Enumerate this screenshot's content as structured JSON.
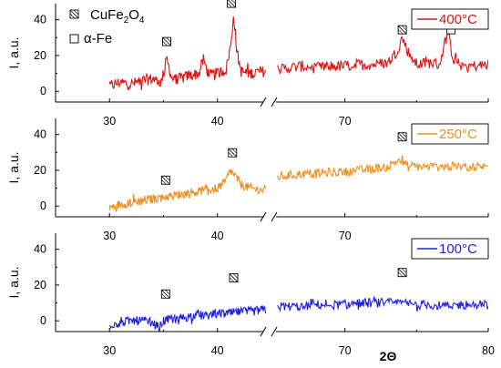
{
  "chart_data": {
    "type": "line",
    "xlabel": "2Θ",
    "x_segments": [
      [
        25,
        44.5
      ],
      [
        65,
        80
      ]
    ],
    "x_ticks_left": [
      30,
      40
    ],
    "x_ticks_right": [
      70,
      80
    ],
    "x_tick_labels_shown": {
      "panel_0": [
        "30",
        "40",
        "70"
      ],
      "panel_1": [
        "30",
        "40",
        "70"
      ],
      "panel_2": [
        "30",
        "40",
        "70",
        "80"
      ]
    },
    "panels": [
      {
        "temperature": "400°C",
        "color": "#dd1111",
        "ylabel": "I, a.u.",
        "ylim": [
          -6,
          49
        ],
        "yticks": [
          "0",
          "20",
          "40"
        ],
        "points": [
          [
            30,
            3
          ],
          [
            31,
            5
          ],
          [
            32,
            4
          ],
          [
            33,
            6
          ],
          [
            34,
            7
          ],
          [
            34.8,
            5
          ],
          [
            35.3,
            18
          ],
          [
            35.8,
            7
          ],
          [
            36.5,
            7
          ],
          [
            37.5,
            9
          ],
          [
            38.3,
            10
          ],
          [
            38.7,
            18
          ],
          [
            39.2,
            9
          ],
          [
            40,
            10
          ],
          [
            40.8,
            12
          ],
          [
            41.3,
            28
          ],
          [
            41.5,
            44
          ],
          [
            41.8,
            22
          ],
          [
            42.2,
            11
          ],
          [
            43,
            10
          ],
          [
            44,
            11
          ],
          [
            44.5,
            11
          ],
          [
            65,
            12
          ],
          [
            66,
            13
          ],
          [
            67,
            14
          ],
          [
            68,
            13
          ],
          [
            69,
            14
          ],
          [
            70,
            14
          ],
          [
            71,
            15
          ],
          [
            72,
            15
          ],
          [
            73,
            16
          ],
          [
            73.6,
            22
          ],
          [
            74,
            30
          ],
          [
            74.4,
            22
          ],
          [
            75,
            15
          ],
          [
            76,
            16
          ],
          [
            76.6,
            15
          ],
          [
            77,
            28
          ],
          [
            77.2,
            32
          ],
          [
            77.5,
            20
          ],
          [
            78,
            15
          ],
          [
            79,
            14
          ],
          [
            80,
            15
          ]
        ],
        "markers": [
          {
            "x": 35.3,
            "y": 27.8,
            "label": "CuFe2O4"
          },
          {
            "x": 41.3,
            "y": 49.2,
            "label": "CuFe2O4"
          },
          {
            "x": 74.0,
            "y": 34.4,
            "label": "CuFe2O4"
          },
          {
            "x": 77.4,
            "y": 34.4,
            "label": "α-Fe"
          }
        ]
      },
      {
        "temperature": "250°C",
        "color": "#ee8c1c",
        "ylabel": "I, a.u.",
        "ylim": [
          -6,
          49
        ],
        "yticks": [
          "0",
          "20",
          "40"
        ],
        "points": [
          [
            30,
            -1
          ],
          [
            31,
            1
          ],
          [
            32,
            2
          ],
          [
            33,
            3
          ],
          [
            34,
            4
          ],
          [
            35,
            5
          ],
          [
            36,
            6
          ],
          [
            37,
            7
          ],
          [
            38,
            8
          ],
          [
            39,
            9
          ],
          [
            40,
            10
          ],
          [
            40.7,
            13
          ],
          [
            41.2,
            20
          ],
          [
            41.6,
            17
          ],
          [
            42.2,
            12
          ],
          [
            43,
            10
          ],
          [
            44,
            9
          ],
          [
            44.5,
            9
          ],
          [
            65,
            16
          ],
          [
            66,
            17
          ],
          [
            67,
            18
          ],
          [
            68,
            18
          ],
          [
            69,
            19
          ],
          [
            70,
            19
          ],
          [
            71,
            20
          ],
          [
            72,
            21
          ],
          [
            73,
            22
          ],
          [
            73.8,
            26
          ],
          [
            74.4,
            22
          ],
          [
            75,
            22
          ],
          [
            76,
            22
          ],
          [
            77,
            22
          ],
          [
            78,
            22
          ],
          [
            79,
            22
          ],
          [
            80,
            22
          ]
        ],
        "markers": [
          {
            "x": 35.2,
            "y": 14.5,
            "label": "CuFe2O4"
          },
          {
            "x": 41.4,
            "y": 29.8,
            "label": "CuFe2O4"
          },
          {
            "x": 74.0,
            "y": 38.7,
            "label": "CuFe2O4"
          }
        ]
      },
      {
        "temperature": "100°C",
        "color": "#1f1fdf",
        "ylabel": "I, a.u.",
        "ylim": [
          -6,
          49
        ],
        "yticks": [
          "0",
          "20",
          "40"
        ],
        "points": [
          [
            30,
            -2
          ],
          [
            31,
            -1
          ],
          [
            32,
            0
          ],
          [
            33,
            0
          ],
          [
            34,
            -1
          ],
          [
            34.6,
            -4
          ],
          [
            35,
            0
          ],
          [
            36,
            1
          ],
          [
            37,
            2
          ],
          [
            38,
            3
          ],
          [
            39,
            3
          ],
          [
            40,
            4
          ],
          [
            41,
            4
          ],
          [
            42,
            5
          ],
          [
            43,
            5
          ],
          [
            44,
            6
          ],
          [
            44.5,
            6
          ],
          [
            65,
            8
          ],
          [
            66,
            8
          ],
          [
            67,
            8
          ],
          [
            68,
            9
          ],
          [
            69,
            9
          ],
          [
            70,
            9
          ],
          [
            71,
            10
          ],
          [
            72,
            10
          ],
          [
            73,
            10
          ],
          [
            74,
            10
          ],
          [
            75,
            9
          ],
          [
            76,
            9
          ],
          [
            77,
            8
          ],
          [
            78,
            9
          ],
          [
            79,
            9
          ],
          [
            80,
            9
          ]
        ],
        "markers": [
          {
            "x": 35.2,
            "y": 15.0,
            "label": "CuFe2O4"
          },
          {
            "x": 41.5,
            "y": 24.0,
            "label": "CuFe2O4"
          },
          {
            "x": 74.0,
            "y": 27.0,
            "label": "CuFe2O4"
          }
        ]
      }
    ],
    "legend": {
      "placement": "top-left",
      "entries": [
        {
          "label": "CuFe",
          "sub1": "2",
          "mid": "O",
          "sub2": "4",
          "hatched": true
        },
        {
          "label": "α-Fe",
          "hatched": false
        }
      ]
    }
  }
}
